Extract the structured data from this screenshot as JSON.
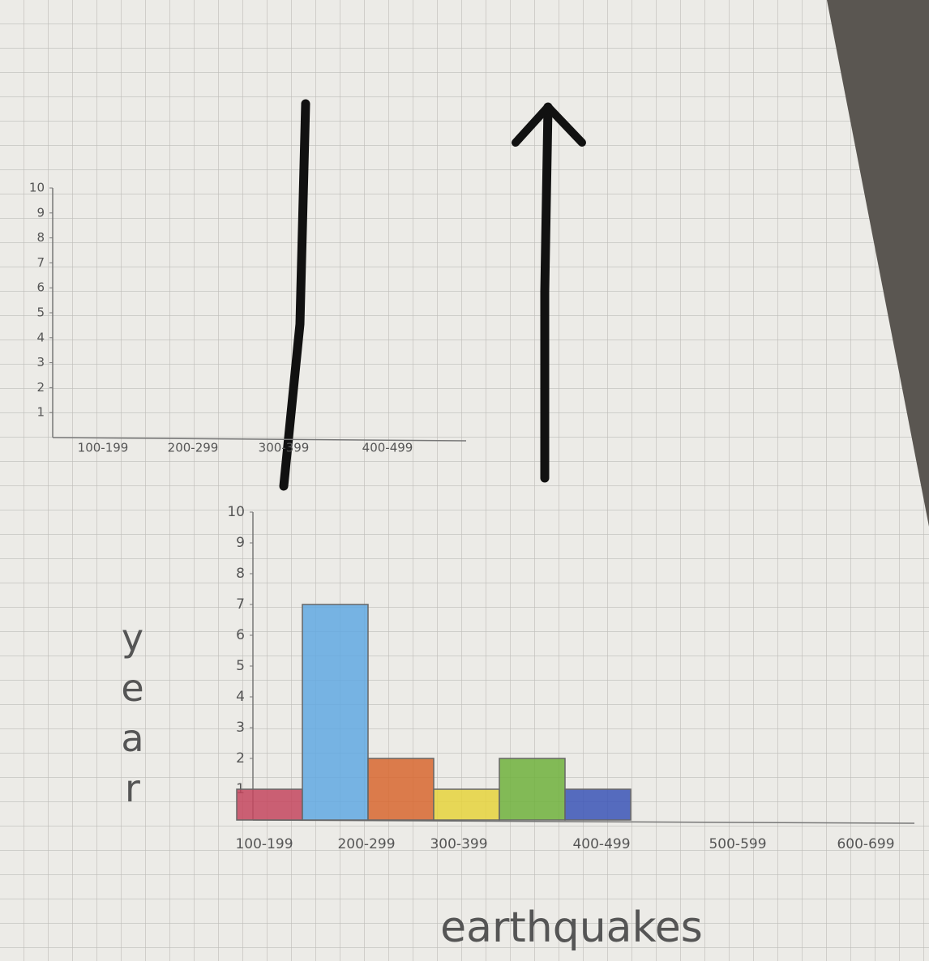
{
  "chart_data": [
    {
      "type": "bar",
      "categories": [
        "100-199",
        "200-299",
        "300-399",
        "400-499"
      ],
      "ylim": [
        0,
        10
      ],
      "yticks": [
        1,
        2,
        3,
        4,
        5,
        6,
        7,
        8,
        9,
        10
      ]
    },
    {
      "type": "bar",
      "y_label": "year",
      "x_label": "earthquakes",
      "categories": [
        "100-199",
        "200-299",
        "300-399",
        "400-499",
        "500-599",
        "600-699"
      ],
      "values": [
        1,
        7,
        2,
        1,
        2,
        1
      ],
      "colors": [
        "#c4475e",
        "#62a9e2",
        "#d8672f",
        "#e6d43c",
        "#70b23c",
        "#3b55b6"
      ],
      "ylim": [
        0,
        10
      ],
      "yticks": [
        1,
        2,
        3,
        4,
        5,
        6,
        7,
        8,
        9,
        10
      ]
    }
  ]
}
